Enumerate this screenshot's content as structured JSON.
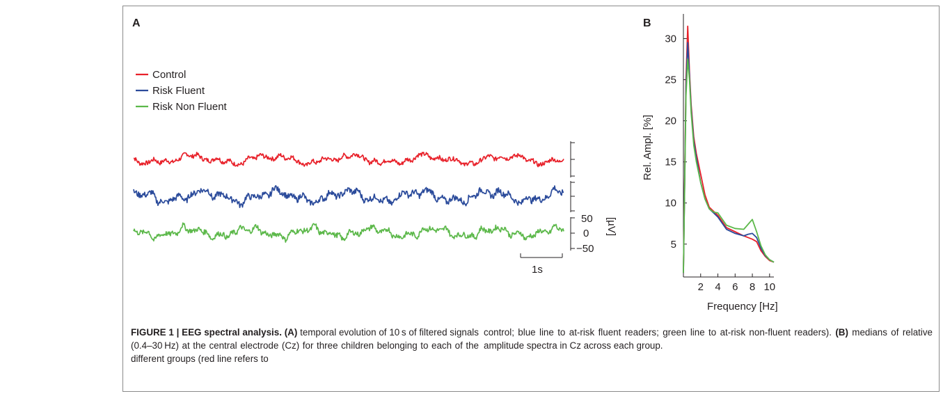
{
  "panel_a": {
    "label": "A",
    "legend": [
      {
        "name": "Control",
        "color": "#e8212a"
      },
      {
        "name": "Risk Fluent",
        "color": "#2b4b9b"
      },
      {
        "name": "Risk Non Fluent",
        "color": "#5cb84a"
      }
    ],
    "amplitude_ticks": [
      "50",
      "0",
      "−50"
    ],
    "amplitude_unit": "[µV]",
    "time_scale": "1s"
  },
  "chart_data": {
    "type": "line",
    "xlabel": "Frequency [Hz]",
    "ylabel": "Rel. Ampl. [%]",
    "xlim": [
      0,
      10.5
    ],
    "ylim": [
      1,
      33
    ],
    "xticks": [
      2,
      4,
      6,
      8,
      10
    ],
    "yticks": [
      5,
      10,
      15,
      20,
      25,
      30
    ],
    "panel_label": "B",
    "series": [
      {
        "name": "Control",
        "color": "#e8212a",
        "x": [
          0,
          0.3,
          0.5,
          0.7,
          0.9,
          1.2,
          1.5,
          2.0,
          2.5,
          3.0,
          3.5,
          4.0,
          5.0,
          6.0,
          7.0,
          7.5,
          8.0,
          8.5,
          9.0,
          9.5,
          10.0,
          10.5
        ],
        "y": [
          1.5,
          25,
          31.5,
          26,
          22,
          18,
          16,
          13.5,
          11,
          9.5,
          9,
          8.5,
          7,
          6.5,
          6,
          5.8,
          5.6,
          5.3,
          4.2,
          3.5,
          3.0,
          2.8
        ]
      },
      {
        "name": "Risk Fluent",
        "color": "#2b4b9b",
        "x": [
          0,
          0.3,
          0.5,
          0.7,
          0.9,
          1.2,
          1.5,
          2.0,
          2.5,
          3.0,
          3.5,
          4.0,
          5.0,
          6.0,
          7.0,
          7.5,
          8.0,
          8.5,
          9.0,
          9.5,
          10.0,
          10.5
        ],
        "y": [
          1.5,
          24,
          29.5,
          25.5,
          21.5,
          17.5,
          15.5,
          12.5,
          10.5,
          9.3,
          8.8,
          8.3,
          6.8,
          6.3,
          6.0,
          6.2,
          6.3,
          5.8,
          4.5,
          3.6,
          3.1,
          2.8
        ]
      },
      {
        "name": "Risk Non Fluent",
        "color": "#5cb84a",
        "x": [
          0,
          0.3,
          0.5,
          0.7,
          0.9,
          1.2,
          1.5,
          2.0,
          2.5,
          3.0,
          3.5,
          4.0,
          5.0,
          6.0,
          7.0,
          7.5,
          8.0,
          8.5,
          9.0,
          9.5,
          10.0,
          10.5
        ],
        "y": [
          1.5,
          23,
          27.5,
          25,
          21,
          17,
          15,
          12.5,
          10.5,
          9.3,
          8.9,
          8.8,
          7.3,
          6.9,
          6.8,
          7.4,
          8.0,
          6.5,
          4.8,
          3.7,
          3.1,
          2.8
        ]
      }
    ]
  },
  "caption": {
    "heading": "FIGURE 1 | EEG spectral analysis.",
    "part_a_label": "(A)",
    "part_a_text_1": " temporal evolution of 10 s of filtered signals (0.4–30 Hz) at the central electrode (Cz) for three children belonging to each of the different groups (red line refers to",
    "part_a_text_2": "control; blue line to at-risk fluent readers; green line to at-risk non-fluent readers). ",
    "part_b_label": "(B)",
    "part_b_text": " medians of relative amplitude spectra in Cz across each group."
  }
}
